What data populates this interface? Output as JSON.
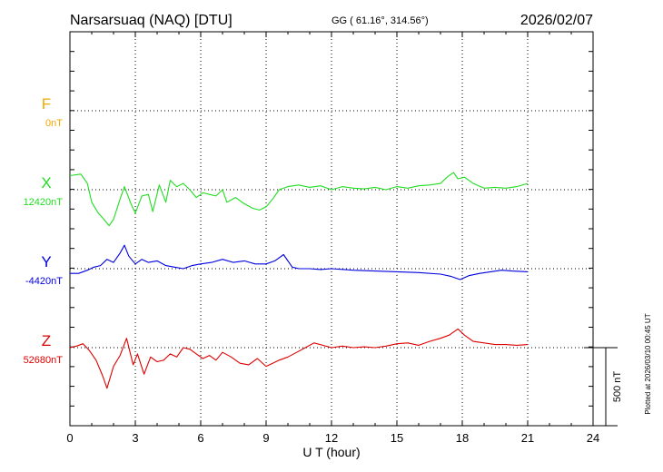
{
  "header": {
    "station": "Narsarsuaq (NAQ)  [DTU]",
    "coords": "GG ( 61.16°, 314.56°)",
    "date": "2026/02/07"
  },
  "footer": {
    "xlabel": "U T (hour)",
    "scale_label": "500 nT",
    "plotted": "Plotted at 2026/03/10 00:45 UT"
  },
  "chart_data": {
    "type": "line",
    "x_ticks": [
      0,
      3,
      6,
      9,
      12,
      15,
      18,
      21,
      24
    ],
    "x_range": [
      0,
      24
    ],
    "scale_nT": 500,
    "grid": true,
    "series": [
      {
        "name": "F",
        "baseline_label": "0nT",
        "color": "#f0a800",
        "x": [],
        "y": []
      },
      {
        "name": "X",
        "baseline_label": "12420nT",
        "color": "#22dd22",
        "x": [
          0,
          0.5,
          0.8,
          1.0,
          1.3,
          1.5,
          1.8,
          2.0,
          2.3,
          2.5,
          2.8,
          3.0,
          3.3,
          3.6,
          3.8,
          4.1,
          4.4,
          4.6,
          4.9,
          5.2,
          5.5,
          5.8,
          6.1,
          6.4,
          6.7,
          7.0,
          7.2,
          7.6,
          8.0,
          8.4,
          8.7,
          9.0,
          9.3,
          9.6,
          10.0,
          10.5,
          11.0,
          11.5,
          12.0,
          12.5,
          13.0,
          13.5,
          14.0,
          14.5,
          15.0,
          15.5,
          16.0,
          16.5,
          17.0,
          17.3,
          17.6,
          17.8,
          18.1,
          18.5,
          19.0,
          19.5,
          20.0,
          20.5,
          21.0
        ],
        "y": [
          90,
          100,
          40,
          -80,
          -150,
          -180,
          -230,
          -190,
          -60,
          20,
          -90,
          -150,
          -40,
          -30,
          -140,
          30,
          -80,
          60,
          20,
          40,
          0,
          -50,
          -20,
          -30,
          -40,
          0,
          -80,
          -50,
          -90,
          -120,
          -130,
          -110,
          -60,
          0,
          20,
          30,
          15,
          25,
          0,
          20,
          10,
          5,
          15,
          0,
          20,
          10,
          25,
          30,
          40,
          80,
          110,
          70,
          80,
          40,
          10,
          15,
          10,
          20,
          40
        ]
      },
      {
        "name": "Y",
        "baseline_label": "-4420nT",
        "color": "#0000e0",
        "x": [
          0,
          0.4,
          0.8,
          1.1,
          1.4,
          1.7,
          2.0,
          2.3,
          2.5,
          2.7,
          3.0,
          3.3,
          3.6,
          4.0,
          4.4,
          4.8,
          5.2,
          5.6,
          6.0,
          6.5,
          7.0,
          7.5,
          8.0,
          8.5,
          9.0,
          9.4,
          9.8,
          10.2,
          10.5,
          11.0,
          11.5,
          12.0,
          13.0,
          14.0,
          15.0,
          16.0,
          17.0,
          17.5,
          17.9,
          18.3,
          18.8,
          19.3,
          19.8,
          20.3,
          21.0
        ],
        "y": [
          -30,
          -30,
          -10,
          10,
          20,
          60,
          40,
          100,
          150,
          80,
          30,
          60,
          40,
          50,
          20,
          10,
          0,
          20,
          30,
          40,
          60,
          40,
          50,
          30,
          30,
          50,
          90,
          10,
          0,
          0,
          -5,
          0,
          -10,
          -15,
          -20,
          -25,
          -35,
          -50,
          -70,
          -45,
          -30,
          -20,
          -10,
          -15,
          -20
        ]
      },
      {
        "name": "Z",
        "baseline_label": "52680nT",
        "color": "#dd0000",
        "x": [
          0,
          0.3,
          0.6,
          0.9,
          1.2,
          1.5,
          1.7,
          2.0,
          2.3,
          2.6,
          2.9,
          3.1,
          3.4,
          3.7,
          4.0,
          4.3,
          4.6,
          4.9,
          5.2,
          5.5,
          5.8,
          6.1,
          6.4,
          6.7,
          7.0,
          7.4,
          7.8,
          8.2,
          8.6,
          9.0,
          9.3,
          9.6,
          10.0,
          10.4,
          10.8,
          11.2,
          11.6,
          12.0,
          12.5,
          13.0,
          13.5,
          14.0,
          14.5,
          15.0,
          15.5,
          16.0,
          16.5,
          17.0,
          17.4,
          17.8,
          18.1,
          18.5,
          19.0,
          19.5,
          20.0,
          20.5,
          21.0
        ],
        "y": [
          0,
          10,
          25,
          -20,
          -80,
          -180,
          -260,
          -120,
          -50,
          60,
          -110,
          -40,
          -170,
          -60,
          -90,
          -80,
          -40,
          -60,
          0,
          -10,
          -40,
          -70,
          -50,
          -80,
          -30,
          -60,
          -100,
          -110,
          -70,
          -120,
          -100,
          -80,
          -60,
          -30,
          0,
          30,
          15,
          0,
          10,
          0,
          5,
          0,
          10,
          25,
          30,
          15,
          40,
          60,
          80,
          120,
          80,
          40,
          30,
          20,
          20,
          15,
          20
        ]
      }
    ]
  }
}
